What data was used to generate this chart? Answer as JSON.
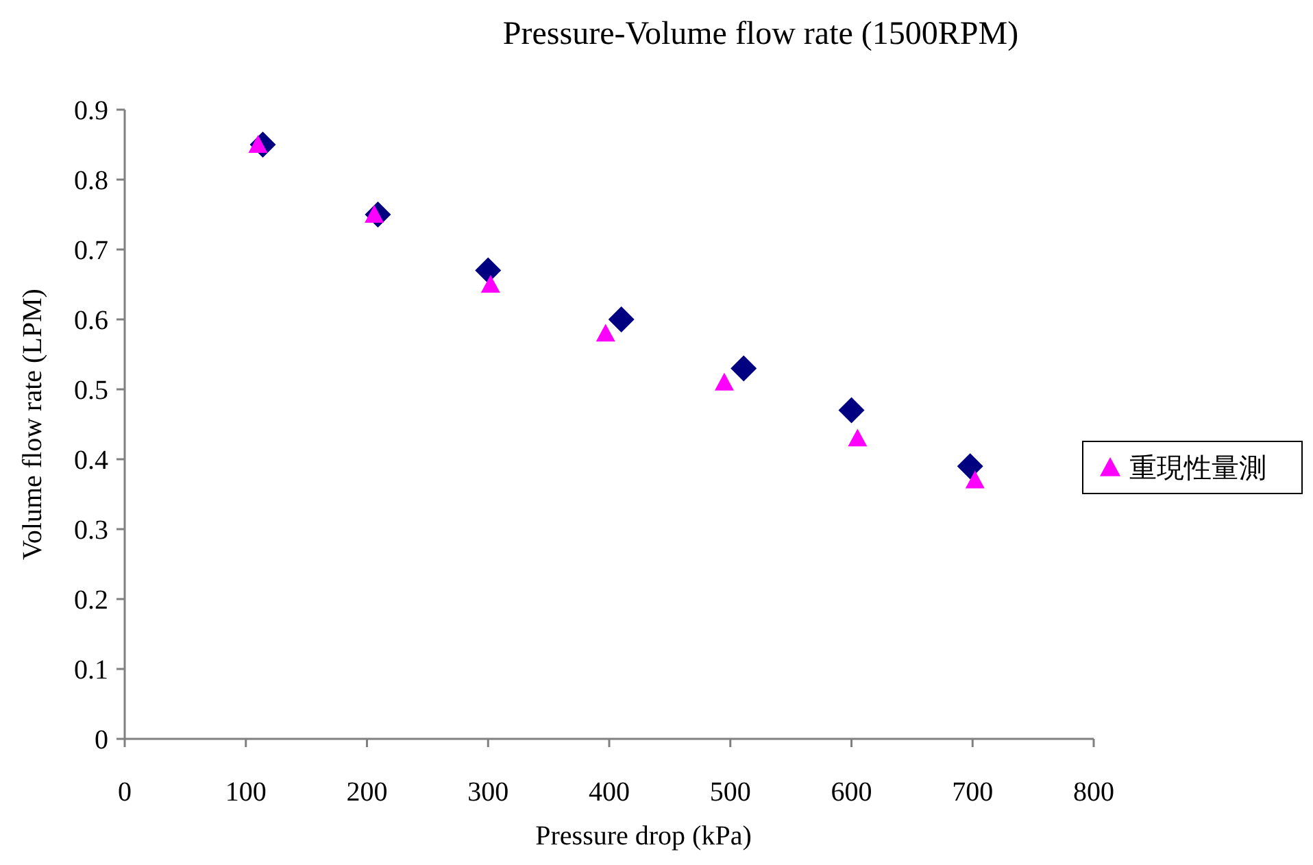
{
  "chart_data": {
    "type": "scatter",
    "title": "Pressure-Volume flow rate (1500RPM)",
    "xlabel": "Pressure drop (kPa)",
    "ylabel": "Volume flow rate (LPM)",
    "xlim": [
      0,
      800
    ],
    "xticks": [
      0,
      100,
      200,
      300,
      400,
      500,
      600,
      700,
      800
    ],
    "ylim": [
      0,
      0.9
    ],
    "yticks": [
      0,
      0.1,
      0.2,
      0.3,
      0.4,
      0.5,
      0.6,
      0.7,
      0.8,
      0.9
    ],
    "grid": false,
    "legend": "right",
    "series": [
      {
        "color": "#000080",
        "marker": "diamond",
        "x": [
          114,
          209,
          300,
          410,
          511,
          600,
          698
        ],
        "values": [
          0.85,
          0.75,
          0.67,
          0.6,
          0.53,
          0.47,
          0.39
        ]
      },
      {
        "name": "重現性量測",
        "color": "#ff00ff",
        "marker": "triangle",
        "x": [
          110,
          206,
          302,
          397,
          495,
          605,
          702
        ],
        "values": [
          0.85,
          0.75,
          0.65,
          0.58,
          0.51,
          0.43,
          0.37
        ]
      }
    ]
  }
}
